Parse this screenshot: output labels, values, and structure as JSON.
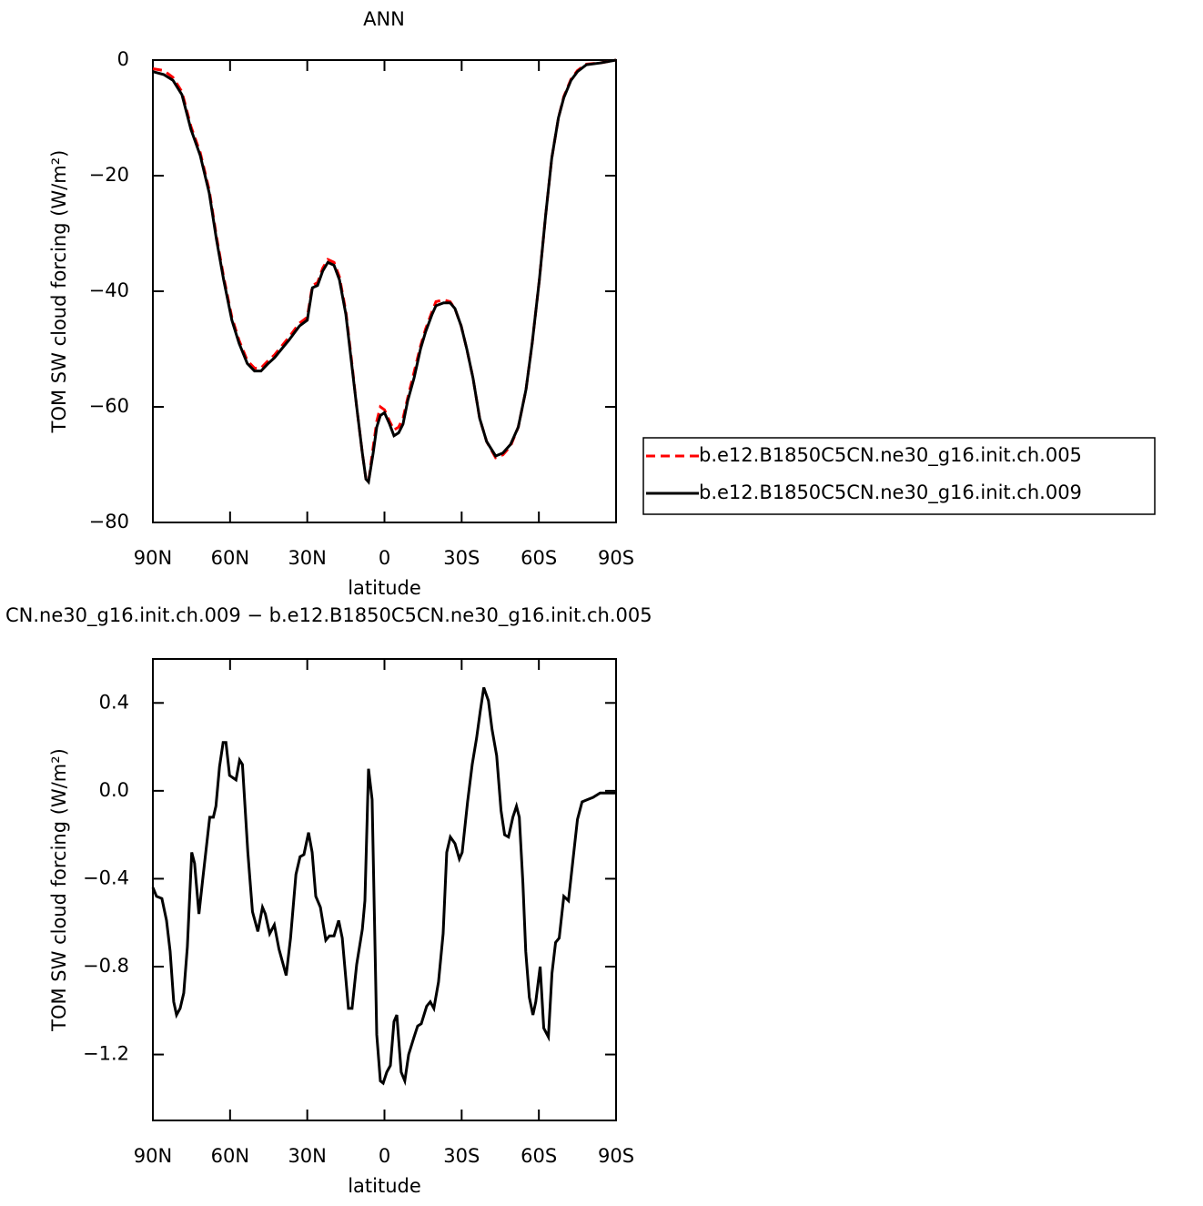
{
  "chart_data": [
    {
      "type": "line",
      "title": "ANN",
      "x_label": "latitude",
      "y_label": "TOM SW cloud forcing (W/m²)",
      "xlim": [
        90,
        -90
      ],
      "ylim": [
        -80,
        0
      ],
      "xticks": [
        {
          "value": 90,
          "label": "90N"
        },
        {
          "value": 60,
          "label": "60N"
        },
        {
          "value": 30,
          "label": "30N"
        },
        0,
        {
          "value": -30,
          "label": "30S"
        },
        {
          "value": -60,
          "label": "60S"
        },
        {
          "value": -90,
          "label": "90S"
        }
      ],
      "yticks": [
        0,
        {
          "value": -20,
          "label": "−20"
        },
        {
          "value": -40,
          "label": "−40"
        },
        {
          "value": -60,
          "label": "−60"
        },
        {
          "value": -80,
          "label": "−80"
        }
      ],
      "legend": "outside-right",
      "x": [
        90,
        85.8,
        82.2,
        78.7,
        75.2,
        71.6,
        68.1,
        65.3,
        62.5,
        59.3,
        56.5,
        53.3,
        50.5,
        48,
        45.2,
        42.7,
        40,
        37.2,
        34.7,
        33,
        30,
        28,
        26,
        24,
        22,
        19.6,
        17.5,
        15,
        12.9,
        10.8,
        8.6,
        7.2,
        6.2,
        4.4,
        3,
        1.6,
        0,
        -2,
        -3.7,
        -5.5,
        -7.2,
        -9,
        -11.5,
        -14,
        -16,
        -18.5,
        -20,
        -23,
        -25.5,
        -27.4,
        -29.8,
        -32,
        -34.4,
        -37,
        -39.7,
        -43.2,
        -46,
        -49,
        -52,
        -55,
        -57.4,
        -60.2,
        -62.6,
        -65,
        -67.6,
        -69.7,
        -72.5,
        -75,
        -78.5,
        -83.8,
        -90
      ],
      "series": [
        {
          "name": "b.e12.B1850C5CN.ne30_g16.init.ch.005",
          "color": "#ff0000",
          "style": "dashed",
          "values": [
            -1.5,
            -1.8,
            -3,
            -5.5,
            -11.5,
            -16,
            -22.5,
            -30.5,
            -37.5,
            -44.5,
            -48.5,
            -52,
            -53.3,
            -53.3,
            -52,
            -51,
            -49.5,
            -48,
            -46.5,
            -45.5,
            -44.5,
            -39,
            -38.5,
            -36,
            -34.5,
            -35,
            -37.5,
            -43.5,
            -51.5,
            -60,
            -68,
            -72.5,
            -73,
            -67,
            -62.5,
            -60,
            -60.5,
            -62.5,
            -64,
            -63.5,
            -62,
            -58.5,
            -54,
            -49.5,
            -46.5,
            -43.5,
            -41.8,
            -41.5,
            -41.8,
            -43,
            -46,
            -50,
            -55,
            -62,
            -66,
            -68.8,
            -68.3,
            -66.8,
            -63.5,
            -57,
            -49,
            -38,
            -27,
            -17,
            -10,
            -6.3,
            -3.3,
            -1.8,
            -0.7,
            -0.5,
            0
          ]
        },
        {
          "name": "b.e12.B1850C5CN.ne30_g16.init.ch.009",
          "color": "#000000",
          "style": "solid",
          "values": [
            -2,
            -2.5,
            -3.5,
            -6,
            -12,
            -16.5,
            -23,
            -31,
            -38,
            -45,
            -49,
            -52.5,
            -53.8,
            -53.8,
            -52.5,
            -51.5,
            -50,
            -48.5,
            -47,
            -46,
            -45,
            -39.4,
            -39,
            -36.5,
            -35,
            -35.5,
            -38,
            -44,
            -52,
            -60,
            -68,
            -72.5,
            -73,
            -68,
            -63.5,
            -61.5,
            -61,
            -63,
            -65,
            -64.5,
            -63,
            -59,
            -55,
            -50,
            -47,
            -44,
            -42.5,
            -42,
            -42,
            -43,
            -46,
            -50,
            -55,
            -62,
            -66,
            -68.5,
            -68,
            -66.5,
            -63.5,
            -57,
            -49,
            -38,
            -27,
            -17,
            -10,
            -6.5,
            -3.5,
            -2,
            -0.8,
            -0.5,
            0
          ]
        }
      ]
    },
    {
      "type": "line",
      "title": "CN.ne30_g16.init.ch.009 − b.e12.B1850C5CN.ne30_g16.init.ch.005",
      "x_label": "latitude",
      "y_label": "TOM SW cloud forcing (W/m²)",
      "xlim": [
        90,
        -90
      ],
      "ylim": [
        -1.5,
        0.6
      ],
      "xticks": [
        {
          "value": 90,
          "label": "90N"
        },
        {
          "value": 60,
          "label": "60N"
        },
        {
          "value": 30,
          "label": "30N"
        },
        0,
        {
          "value": -30,
          "label": "30S"
        },
        {
          "value": -60,
          "label": "60S"
        },
        {
          "value": -90,
          "label": "90S"
        }
      ],
      "yticks": [
        0.4,
        {
          "value": 0,
          "label": "0.0"
        },
        {
          "value": -0.4,
          "label": "−0.4"
        },
        {
          "value": -0.8,
          "label": "−0.8"
        },
        {
          "value": -1.2,
          "label": "−1.2"
        }
      ],
      "x": [
        90,
        88.6,
        86.5,
        84.7,
        83.3,
        81.9,
        80.8,
        79.4,
        78,
        76.6,
        74.9,
        73.8,
        72.1,
        70.7,
        67.9,
        66.5,
        65.5,
        64.1,
        62.7,
        61.6,
        60.2,
        57.7,
        56.3,
        55.2,
        53.1,
        51.3,
        49.2,
        47.4,
        46.3,
        44.6,
        42.8,
        41,
        38.2,
        36.5,
        34.4,
        32.8,
        31.3,
        29.5,
        28.1,
        26.7,
        24.9,
        22.8,
        21.4,
        19.6,
        17.8,
        16.4,
        14,
        12.6,
        10.8,
        8.6,
        7.6,
        6.2,
        4.8,
        3,
        1.6,
        0.5,
        -0.9,
        -2.3,
        -3.7,
        -4.8,
        -6.5,
        -7.9,
        -9.4,
        -11.5,
        -12.9,
        -14.3,
        -16.4,
        -17.8,
        -19.2,
        -21,
        -22.8,
        -24.2,
        -25.6,
        -27.4,
        -29.1,
        -30.2,
        -32.3,
        -34.1,
        -35.8,
        -37.2,
        -38.6,
        -40.4,
        -41.8,
        -43.6,
        -45.3,
        -46.7,
        -48.2,
        -49.9,
        -51.3,
        -52.4,
        -53.8,
        -54.9,
        -56.3,
        -57.7,
        -58.8,
        -60.5,
        -61.9,
        -63.7,
        -65.1,
        -66.5,
        -67.9,
        -69.7,
        -71.5,
        -73.2,
        -75,
        -76.8,
        -78.9,
        -81,
        -83.8,
        -86.6,
        -90
      ],
      "series": [
        {
          "color": "#000000",
          "style": "solid",
          "values": [
            -0.44,
            -0.48,
            -0.49,
            -0.59,
            -0.73,
            -0.96,
            -1.02,
            -0.99,
            -0.92,
            -0.71,
            -0.28,
            -0.33,
            -0.56,
            -0.41,
            -0.12,
            -0.12,
            -0.07,
            0.11,
            0.22,
            0.22,
            0.07,
            0.05,
            0.14,
            0.12,
            -0.28,
            -0.55,
            -0.64,
            -0.53,
            -0.56,
            -0.65,
            -0.61,
            -0.72,
            -0.84,
            -0.67,
            -0.38,
            -0.3,
            -0.29,
            -0.19,
            -0.28,
            -0.48,
            -0.53,
            -0.68,
            -0.66,
            -0.66,
            -0.59,
            -0.67,
            -0.99,
            -0.99,
            -0.79,
            -0.63,
            -0.5,
            0.1,
            -0.04,
            -1.11,
            -1.32,
            -1.33,
            -1.28,
            -1.25,
            -1.05,
            -1.02,
            -1.28,
            -1.32,
            -1.2,
            -1.12,
            -1.07,
            -1.06,
            -0.98,
            -0.96,
            -0.99,
            -0.87,
            -0.65,
            -0.28,
            -0.21,
            -0.24,
            -0.31,
            -0.28,
            -0.05,
            0.12,
            0.24,
            0.36,
            0.47,
            0.41,
            0.28,
            0.16,
            -0.09,
            -0.2,
            -0.21,
            -0.12,
            -0.07,
            -0.12,
            -0.42,
            -0.73,
            -0.94,
            -1.02,
            -0.96,
            -0.8,
            -1.08,
            -1.12,
            -0.83,
            -0.69,
            -0.67,
            -0.48,
            -0.5,
            -0.32,
            -0.13,
            -0.05,
            -0.04,
            -0.03,
            -0.01,
            -0.01,
            -0.01
          ]
        }
      ]
    }
  ]
}
